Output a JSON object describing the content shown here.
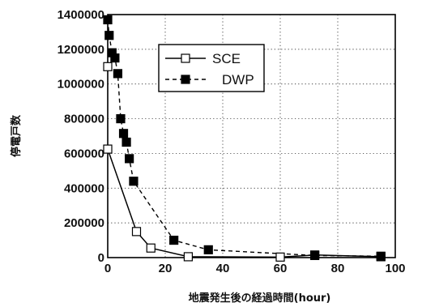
{
  "chart_data": {
    "type": "scatter",
    "title": "",
    "xlabel": "地震発生後の経過時間(hour)",
    "ylabel": "停電戸数",
    "xlim": [
      0,
      100
    ],
    "ylim": [
      0,
      1400000
    ],
    "x_ticks": [
      0,
      20,
      40,
      60,
      80,
      100
    ],
    "y_ticks": [
      0,
      200000,
      400000,
      600000,
      800000,
      1000000,
      1200000,
      1400000
    ],
    "grid": true,
    "legend_position": "upper-center",
    "series": [
      {
        "name": "SCE",
        "line_style": "solid",
        "marker": "open-square",
        "color": "#000000",
        "points": [
          {
            "x": 0,
            "y": 1100000
          },
          {
            "x": 0,
            "y": 625000
          },
          {
            "x": 10,
            "y": 150000
          },
          {
            "x": 15,
            "y": 55000
          },
          {
            "x": 28,
            "y": 5000
          },
          {
            "x": 60,
            "y": 3000
          },
          {
            "x": 72,
            "y": 15000
          },
          {
            "x": 95,
            "y": 5000
          }
        ]
      },
      {
        "name": "DWP",
        "line_style": "dashed",
        "marker": "filled-square",
        "color": "#000000",
        "points": [
          {
            "x": 0,
            "y": 1370000
          },
          {
            "x": 0.5,
            "y": 1280000
          },
          {
            "x": 1.5,
            "y": 1180000
          },
          {
            "x": 2.5,
            "y": 1150000
          },
          {
            "x": 3.5,
            "y": 1060000
          },
          {
            "x": 4.5,
            "y": 800000
          },
          {
            "x": 5.5,
            "y": 715000
          },
          {
            "x": 6.5,
            "y": 665000
          },
          {
            "x": 7.5,
            "y": 570000
          },
          {
            "x": 9,
            "y": 440000
          },
          {
            "x": 23,
            "y": 100000
          },
          {
            "x": 35,
            "y": 45000
          },
          {
            "x": 72,
            "y": 12000
          },
          {
            "x": 95,
            "y": 8000
          }
        ]
      }
    ]
  }
}
